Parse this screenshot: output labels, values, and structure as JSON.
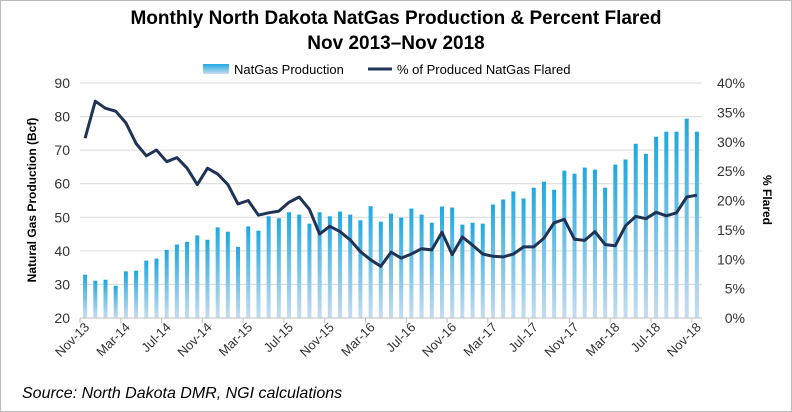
{
  "chart_data": {
    "type": "bar+line",
    "title": "Monthly North Dakota NatGas Production & Percent Flared",
    "subtitle": "Nov 2013–Nov 2018",
    "ylabel": "Natural Gas Production (Bcf)",
    "y2label": "% Flared",
    "ylim": [
      20,
      90
    ],
    "y2lim": [
      0,
      40
    ],
    "yticks": [
      "20",
      "30",
      "40",
      "50",
      "60",
      "70",
      "80",
      "90"
    ],
    "y2ticks": [
      "0%",
      "5%",
      "10%",
      "15%",
      "20%",
      "25%",
      "30%",
      "35%",
      "40%"
    ],
    "xtick_labels": [
      "Nov-13",
      "Mar-14",
      "Jul-14",
      "Nov-14",
      "Mar-15",
      "Jul-15",
      "Nov-15",
      "Mar-16",
      "Jul-16",
      "Nov-16",
      "Mar-17",
      "Jul-17",
      "Nov-17",
      "Mar-18",
      "Jul-18",
      "Nov-18"
    ],
    "grid": true,
    "legend_position": "top",
    "colors": {
      "bar_top": "#1fa8e0",
      "bar_bottom": "#c6dcf0",
      "line": "#1f3357",
      "grid": "#d9d9d9"
    },
    "series": [
      {
        "name": "NatGas Production",
        "type": "bar",
        "axis": "left",
        "values": [
          32.9,
          31.1,
          31.4,
          29.6,
          33.9,
          34.1,
          37.1,
          37.7,
          40.3,
          41.9,
          42.7,
          44.6,
          43.3,
          47.0,
          45.7,
          41.2,
          47.3,
          46.0,
          50.3,
          49.7,
          51.5,
          50.8,
          48.1,
          51.5,
          50.3,
          51.7,
          50.8,
          49.1,
          53.3,
          48.7,
          51.1,
          49.9,
          52.6,
          50.8,
          48.4,
          53.2,
          52.9,
          47.8,
          48.4,
          48.1,
          53.8,
          55.3,
          57.7,
          55.6,
          58.8,
          60.6,
          58.2,
          63.9,
          63.0,
          64.8,
          64.2,
          58.8,
          65.7,
          67.2,
          71.9,
          68.9,
          74.0,
          75.5,
          75.5,
          79.4,
          75.5
        ]
      },
      {
        "name": "% of Produced NatGas Flared",
        "type": "line",
        "axis": "right",
        "values": [
          30.6,
          36.9,
          35.7,
          35.2,
          33.2,
          29.7,
          27.6,
          28.6,
          26.6,
          27.3,
          25.5,
          22.7,
          25.5,
          24.5,
          22.7,
          19.4,
          20.0,
          17.5,
          17.9,
          18.2,
          19.7,
          20.6,
          18.5,
          14.3,
          15.6,
          14.7,
          13.3,
          11.3,
          9.9,
          8.8,
          11.2,
          10.2,
          10.9,
          11.8,
          11.6,
          14.6,
          10.8,
          13.8,
          12.4,
          10.9,
          10.5,
          10.4,
          10.9,
          12.1,
          12.1,
          13.6,
          16.2,
          16.8,
          13.4,
          13.2,
          14.7,
          12.5,
          12.3,
          15.7,
          17.3,
          16.9,
          18.0,
          17.4,
          17.9,
          20.6,
          20.9
        ]
      }
    ]
  },
  "source": "Source: North Dakota DMR, NGI calculations"
}
